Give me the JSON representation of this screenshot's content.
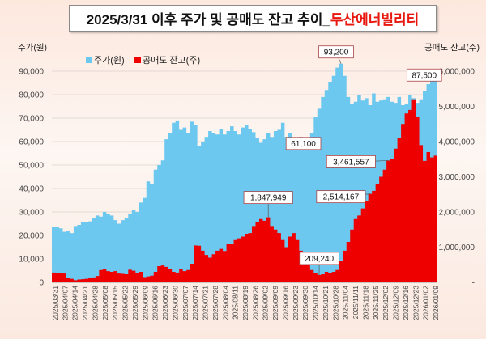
{
  "title": {
    "prefix": "2025/3/31 이후 주가 및 공매도 잔고 추이_",
    "accent": "두산에너빌리티"
  },
  "chart_data": {
    "type": "area",
    "dual_axis": true,
    "left_axis_label": "주가(원)",
    "right_axis_label": "공매도 잔고(주)",
    "left_ylim": [
      0,
      90000
    ],
    "right_ylim": [
      0,
      6000000
    ],
    "left_ticks": [
      "0",
      "10,000",
      "20,000",
      "30,000",
      "40,000",
      "50,000",
      "60,000",
      "70,000",
      "80,000",
      "90,000"
    ],
    "right_ticks": [
      "-",
      "1,000,000",
      "2,000,000",
      "3,000,000",
      "4,000,000",
      "5,000,000",
      "6,000,000"
    ],
    "grid": true,
    "legend_position": "top-left",
    "x_tick_labels": [
      "2025/03/31",
      "2025/04/07",
      "2025/04/14",
      "2025/04/21",
      "2025/04/28",
      "2025/05/08",
      "2025/05/15",
      "2025/05/22",
      "2025/05/29",
      "2025/06/09",
      "2025/06/16",
      "2025/06/23",
      "2025/06/30",
      "2025/07/07",
      "2025/07/14",
      "2025/07/21",
      "2025/07/28",
      "2025/08/04",
      "2025/08/11",
      "2025/08/19",
      "2025/08/26",
      "2025/09/02",
      "2025/09/09",
      "2025/09/16",
      "2025/09/23",
      "2025/09/30",
      "2025/10/14",
      "2025/10/21",
      "2025/10/28",
      "2025/11/04",
      "2025/11/11",
      "2025/11/18",
      "2025/11/25",
      "2025/12/02",
      "2025/12/09",
      "2025/12/16",
      "2025/12/23",
      "2026/01/02",
      "2026/01/09"
    ],
    "series": [
      {
        "name": "주가(원)",
        "axis": "left",
        "color": "#6cc8ef",
        "values": [
          23500,
          23800,
          23000,
          21500,
          22000,
          21000,
          24000,
          24500,
          25500,
          25500,
          26000,
          27500,
          28500,
          28000,
          30000,
          29000,
          28500,
          26500,
          25000,
          26500,
          27500,
          29000,
          31000,
          30000,
          34000,
          36000,
          43000,
          42000,
          48000,
          50000,
          52000,
          61000,
          63500,
          68000,
          69000,
          65000,
          66000,
          63500,
          68500,
          67000,
          58000,
          60000,
          62000,
          64500,
          63500,
          63000,
          65500,
          63000,
          64500,
          66500,
          64500,
          63000,
          66000,
          67000,
          65500,
          64000,
          61500,
          59500,
          61000,
          63500,
          62000,
          64500,
          65000,
          68000,
          62000,
          63500,
          61500,
          61000,
          62000,
          60500,
          61100,
          63500,
          70500,
          74000,
          79000,
          82000,
          85500,
          88000,
          91500,
          93200,
          88000,
          79000,
          76000,
          77000,
          80000,
          77500,
          78500,
          75500,
          80500,
          77000,
          77500,
          78000,
          79000,
          77000,
          76500,
          79000,
          75500,
          76000,
          80000,
          78500,
          76500,
          78000,
          81500,
          84500,
          87000,
          87500
        ]
      },
      {
        "name": "공매도 잔고(주)",
        "axis": "right",
        "color": "#ee0000",
        "values": [
          280000,
          270000,
          260000,
          250000,
          120000,
          100000,
          60000,
          80000,
          90000,
          100000,
          120000,
          140000,
          180000,
          350000,
          380000,
          320000,
          300000,
          320000,
          250000,
          240000,
          230000,
          360000,
          330000,
          260000,
          300000,
          150000,
          170000,
          190000,
          300000,
          460000,
          480000,
          440000,
          380000,
          300000,
          280000,
          390000,
          320000,
          350000,
          530000,
          1050000,
          1040000,
          900000,
          780000,
          700000,
          800000,
          900000,
          950000,
          890000,
          1080000,
          1100000,
          1200000,
          1250000,
          1300000,
          1380000,
          1400000,
          1600000,
          1700000,
          1800000,
          1750000,
          1847949,
          1600000,
          1500000,
          1400000,
          1200000,
          1000000,
          1300000,
          1400000,
          1200000,
          900000,
          700000,
          500000,
          350000,
          260000,
          209240,
          230000,
          300000,
          260000,
          300000,
          350000,
          600000,
          900000,
          1150000,
          1500000,
          1800000,
          1900000,
          2100000,
          2300000,
          2514167,
          2600000,
          2800000,
          3000000,
          3200000,
          3461557,
          3500000,
          3800000,
          4100000,
          4500000,
          4800000,
          4900000,
          5200000,
          4700000,
          3900000,
          3450000,
          3700000,
          3550000,
          3600000
        ]
      }
    ],
    "annotations": [
      {
        "text": "93,200",
        "series": "주가(원)",
        "index": 79
      },
      {
        "text": "61,100",
        "series": "주가(원)",
        "index": 70
      },
      {
        "text": "87,500",
        "series": "주가(원)",
        "index": 105
      },
      {
        "text": "1,847,949",
        "series": "공매도 잔고(주)",
        "index": 59
      },
      {
        "text": "209,240",
        "series": "공매도 잔고(주)",
        "index": 73
      },
      {
        "text": "2,514,167",
        "series": "공매도 잔고(주)",
        "index": 87
      },
      {
        "text": "3,461,557",
        "series": "공매도 잔고(주)",
        "index": 92
      }
    ]
  }
}
